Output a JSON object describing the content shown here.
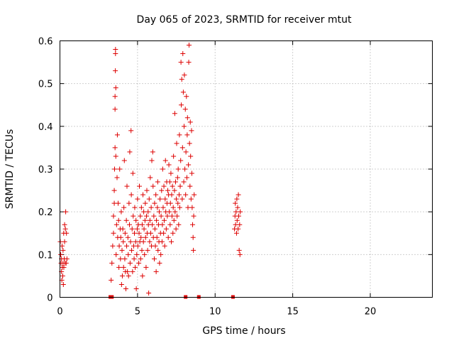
{
  "chart_data": {
    "type": "scatter",
    "title": "Day 065 of 2023, SRMTID for receiver mtut",
    "xlabel": "GPS time / hours",
    "ylabel": "SRMTID / TECUs",
    "xlim": [
      0,
      24
    ],
    "ylim": [
      0,
      0.6
    ],
    "xticks": [
      0,
      5,
      10,
      15,
      20
    ],
    "xtick_labels": [
      "0",
      "5",
      "10",
      "15",
      "20"
    ],
    "yticks": [
      0,
      0.1,
      0.2,
      0.3,
      0.4,
      0.5,
      0.6
    ],
    "ytick_labels": [
      "0",
      "0.1",
      "0.2",
      "0.3",
      "0.4",
      "0.5",
      "0.6"
    ],
    "grid": true,
    "marker": "+",
    "color": "#dd0000",
    "gap_markers_x": [
      3.25,
      3.35,
      8.1,
      8.95,
      11.15
    ],
    "series": [
      {
        "name": "SRMTID",
        "points": [
          [
            0.02,
            0.13
          ],
          [
            0.05,
            0.1
          ],
          [
            0.07,
            0.08
          ],
          [
            0.1,
            0.06
          ],
          [
            0.1,
            0.09
          ],
          [
            0.12,
            0.04
          ],
          [
            0.14,
            0.12
          ],
          [
            0.15,
            0.07
          ],
          [
            0.18,
            0.05
          ],
          [
            0.2,
            0.08
          ],
          [
            0.2,
            0.11
          ],
          [
            0.22,
            0.03
          ],
          [
            0.24,
            0.15
          ],
          [
            0.25,
            0.07
          ],
          [
            0.28,
            0.09
          ],
          [
            0.3,
            0.13
          ],
          [
            0.3,
            0.17
          ],
          [
            0.33,
            0.08
          ],
          [
            0.35,
            0.16
          ],
          [
            0.37,
            0.2
          ],
          [
            0.4,
            0.08
          ],
          [
            0.42,
            0.15
          ],
          [
            0.45,
            0.09
          ],
          [
            3.3,
            0.04
          ],
          [
            3.35,
            0.08
          ],
          [
            3.4,
            0.12
          ],
          [
            3.45,
            0.15
          ],
          [
            3.45,
            0.19
          ],
          [
            3.5,
            0.22
          ],
          [
            3.5,
            0.25
          ],
          [
            3.52,
            0.3
          ],
          [
            3.55,
            0.35
          ],
          [
            3.55,
            0.44
          ],
          [
            3.55,
            0.47
          ],
          [
            3.57,
            0.53
          ],
          [
            3.58,
            0.57
          ],
          [
            3.58,
            0.58
          ],
          [
            3.6,
            0.49
          ],
          [
            3.6,
            0.33
          ],
          [
            3.62,
            0.1
          ],
          [
            3.65,
            0.17
          ],
          [
            3.68,
            0.28
          ],
          [
            3.7,
            0.38
          ],
          [
            3.72,
            0.14
          ],
          [
            3.75,
            0.22
          ],
          [
            3.78,
            0.18
          ],
          [
            3.8,
            0.07
          ],
          [
            3.82,
            0.12
          ],
          [
            3.85,
            0.3
          ],
          [
            3.88,
            0.16
          ],
          [
            3.9,
            0.09
          ],
          [
            3.92,
            0.14
          ],
          [
            3.95,
            0.2
          ],
          [
            3.97,
            0.03
          ],
          [
            4.0,
            0.11
          ],
          [
            4.02,
            0.05
          ],
          [
            4.05,
            0.16
          ],
          [
            4.08,
            0.13
          ],
          [
            4.1,
            0.07
          ],
          [
            4.12,
            0.21
          ],
          [
            4.15,
            0.32
          ],
          [
            4.18,
            0.09
          ],
          [
            4.2,
            0.15
          ],
          [
            4.22,
            0.06
          ],
          [
            4.25,
            0.02
          ],
          [
            4.28,
            0.18
          ],
          [
            4.3,
            0.12
          ],
          [
            4.32,
            0.26
          ],
          [
            4.35,
            0.06
          ],
          [
            4.38,
            0.14
          ],
          [
            4.4,
            0.1
          ],
          [
            4.42,
            0.05
          ],
          [
            4.45,
            0.22
          ],
          [
            4.48,
            0.17
          ],
          [
            4.5,
            0.34
          ],
          [
            4.52,
            0.08
          ],
          [
            4.55,
            0.13
          ],
          [
            4.58,
            0.39
          ],
          [
            4.6,
            0.24
          ],
          [
            4.62,
            0.11
          ],
          [
            4.65,
            0.16
          ],
          [
            4.68,
            0.06
          ],
          [
            4.7,
            0.29
          ],
          [
            4.72,
            0.19
          ],
          [
            4.75,
            0.12
          ],
          [
            4.78,
            0.09
          ],
          [
            4.8,
            0.15
          ],
          [
            4.82,
            0.21
          ],
          [
            4.85,
            0.07
          ],
          [
            4.88,
            0.13
          ],
          [
            4.9,
            0.18
          ],
          [
            4.92,
            0.02
          ],
          [
            4.95,
            0.1
          ],
          [
            4.98,
            0.16
          ],
          [
            5.0,
            0.23
          ],
          [
            5.02,
            0.12
          ],
          [
            5.05,
            0.17
          ],
          [
            5.08,
            0.08
          ],
          [
            5.1,
            0.15
          ],
          [
            5.12,
            0.26
          ],
          [
            5.15,
            0.13
          ],
          [
            5.18,
            0.19
          ],
          [
            5.2,
            0.09
          ],
          [
            5.22,
            0.14
          ],
          [
            5.25,
            0.21
          ],
          [
            5.28,
            0.11
          ],
          [
            5.3,
            0.17
          ],
          [
            5.32,
            0.05
          ],
          [
            5.35,
            0.24
          ],
          [
            5.38,
            0.13
          ],
          [
            5.4,
            0.2
          ],
          [
            5.42,
            0.16
          ],
          [
            5.45,
            0.1
          ],
          [
            5.48,
            0.18
          ],
          [
            5.5,
            0.22
          ],
          [
            5.52,
            0.14
          ],
          [
            5.55,
            0.07
          ],
          [
            5.58,
            0.19
          ],
          [
            5.6,
            0.25
          ],
          [
            5.62,
            0.15
          ],
          [
            5.65,
            0.11
          ],
          [
            5.68,
            0.2
          ],
          [
            5.7,
            0.17
          ],
          [
            5.72,
            0.01
          ],
          [
            5.75,
            0.23
          ],
          [
            5.78,
            0.13
          ],
          [
            5.8,
            0.18
          ],
          [
            5.82,
            0.28
          ],
          [
            5.85,
            0.15
          ],
          [
            5.88,
            0.21
          ],
          [
            5.9,
            0.12
          ],
          [
            5.92,
            0.32
          ],
          [
            5.95,
            0.17
          ],
          [
            5.98,
            0.34
          ],
          [
            6.0,
            0.26
          ],
          [
            6.02,
            0.14
          ],
          [
            6.05,
            0.19
          ],
          [
            6.08,
            0.09
          ],
          [
            6.1,
            0.22
          ],
          [
            6.12,
            0.16
          ],
          [
            6.15,
            0.12
          ],
          [
            6.18,
            0.24
          ],
          [
            6.2,
            0.06
          ],
          [
            6.22,
            0.18
          ],
          [
            6.25,
            0.14
          ],
          [
            6.28,
            0.21
          ],
          [
            6.3,
            0.27
          ],
          [
            6.32,
            0.11
          ],
          [
            6.35,
            0.17
          ],
          [
            6.38,
            0.13
          ],
          [
            6.4,
            0.2
          ],
          [
            6.42,
            0.08
          ],
          [
            6.45,
            0.23
          ],
          [
            6.48,
            0.15
          ],
          [
            6.5,
            0.1
          ],
          [
            6.52,
            0.19
          ],
          [
            6.55,
            0.25
          ],
          [
            6.58,
            0.13
          ],
          [
            6.6,
            0.17
          ],
          [
            6.62,
            0.3
          ],
          [
            6.65,
            0.21
          ],
          [
            6.68,
            0.15
          ],
          [
            6.7,
            0.26
          ],
          [
            6.72,
            0.18
          ],
          [
            6.75,
            0.12
          ],
          [
            6.78,
            0.23
          ],
          [
            6.8,
            0.32
          ],
          [
            6.82,
            0.2
          ],
          [
            6.85,
            0.16
          ],
          [
            6.88,
            0.27
          ],
          [
            6.9,
            0.22
          ],
          [
            6.92,
            0.19
          ],
          [
            6.95,
            0.25
          ],
          [
            6.98,
            0.14
          ],
          [
            7.0,
            0.24
          ],
          [
            7.02,
            0.31
          ],
          [
            7.05,
            0.2
          ],
          [
            7.08,
            0.27
          ],
          [
            7.1,
            0.17
          ],
          [
            7.12,
            0.22
          ],
          [
            7.15,
            0.29
          ],
          [
            7.18,
            0.13
          ],
          [
            7.2,
            0.24
          ],
          [
            7.22,
            0.19
          ],
          [
            7.25,
            0.26
          ],
          [
            7.28,
            0.15
          ],
          [
            7.3,
            0.21
          ],
          [
            7.32,
            0.33
          ],
          [
            7.35,
            0.18
          ],
          [
            7.38,
            0.25
          ],
          [
            7.4,
            0.43
          ],
          [
            7.42,
            0.2
          ],
          [
            7.45,
            0.27
          ],
          [
            7.48,
            0.16
          ],
          [
            7.5,
            0.23
          ],
          [
            7.52,
            0.36
          ],
          [
            7.55,
            0.19
          ],
          [
            7.58,
            0.28
          ],
          [
            7.6,
            0.22
          ],
          [
            7.62,
            0.3
          ],
          [
            7.65,
            0.17
          ],
          [
            7.68,
            0.24
          ],
          [
            7.7,
            0.38
          ],
          [
            7.72,
            0.21
          ],
          [
            7.75,
            0.26
          ],
          [
            7.78,
            0.32
          ],
          [
            7.8,
            0.55
          ],
          [
            7.82,
            0.45
          ],
          [
            7.85,
            0.51
          ],
          [
            7.88,
            0.23
          ],
          [
            7.9,
            0.35
          ],
          [
            7.92,
            0.57
          ],
          [
            7.95,
            0.48
          ],
          [
            7.98,
            0.27
          ],
          [
            8.0,
            0.4
          ],
          [
            8.02,
            0.52
          ],
          [
            8.05,
            0.3
          ],
          [
            8.08,
            0.44
          ],
          [
            8.1,
            0.24
          ],
          [
            8.12,
            0.34
          ],
          [
            8.15,
            0.47
          ],
          [
            8.18,
            0.28
          ],
          [
            8.2,
            0.38
          ],
          [
            8.22,
            0.42
          ],
          [
            8.25,
            0.21
          ],
          [
            8.28,
            0.31
          ],
          [
            8.3,
            0.55
          ],
          [
            8.32,
            0.59
          ],
          [
            8.35,
            0.36
          ],
          [
            8.38,
            0.26
          ],
          [
            8.4,
            0.41
          ],
          [
            8.42,
            0.33
          ],
          [
            8.45,
            0.23
          ],
          [
            8.48,
            0.39
          ],
          [
            8.5,
            0.29
          ],
          [
            8.52,
            0.21
          ],
          [
            8.55,
            0.17
          ],
          [
            8.58,
            0.14
          ],
          [
            8.6,
            0.11
          ],
          [
            8.62,
            0.19
          ],
          [
            8.65,
            0.24
          ],
          [
            11.25,
            0.16
          ],
          [
            11.28,
            0.19
          ],
          [
            11.3,
            0.22
          ],
          [
            11.32,
            0.17
          ],
          [
            11.35,
            0.2
          ],
          [
            11.38,
            0.15
          ],
          [
            11.4,
            0.23
          ],
          [
            11.42,
            0.18
          ],
          [
            11.45,
            0.21
          ],
          [
            11.48,
            0.16
          ],
          [
            11.5,
            0.24
          ],
          [
            11.52,
            0.19
          ],
          [
            11.55,
            0.11
          ],
          [
            11.58,
            0.17
          ],
          [
            11.6,
            0.1
          ],
          [
            11.62,
            0.2
          ]
        ]
      }
    ]
  }
}
